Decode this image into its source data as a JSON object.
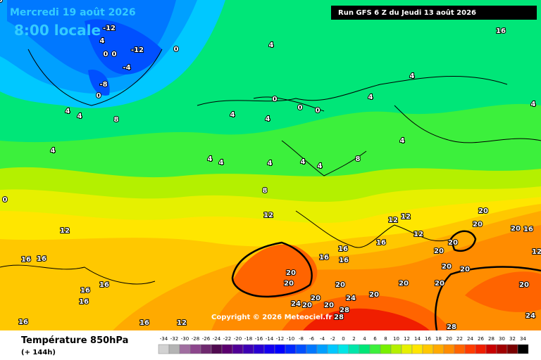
{
  "header": {
    "date": "Mercredi 19 août 2026",
    "time": "8:00 locale",
    "run": "Run GFS 6 Z du Jeudi 13 août 2026",
    "copyright": "Copyright © 2026 Meteociel.fr"
  },
  "footer": {
    "title": "Température 850hPa",
    "lead": "(+ 144h)"
  },
  "legend": [
    {
      "value": -34,
      "color": "#d2d2d2"
    },
    {
      "value": -32,
      "color": "#b4b4b4"
    },
    {
      "value": -30,
      "color": "#a06ea0"
    },
    {
      "value": -28,
      "color": "#8c468c"
    },
    {
      "value": -26,
      "color": "#6e286e"
    },
    {
      "value": -24,
      "color": "#500a50"
    },
    {
      "value": -22,
      "color": "#5a006e"
    },
    {
      "value": -20,
      "color": "#500096"
    },
    {
      "value": -18,
      "color": "#3c00b4"
    },
    {
      "value": -16,
      "color": "#2800d2"
    },
    {
      "value": -14,
      "color": "#1400f0"
    },
    {
      "value": -12,
      "color": "#0000ff"
    },
    {
      "value": -10,
      "color": "#0028ff"
    },
    {
      "value": -8,
      "color": "#0050ff"
    },
    {
      "value": -6,
      "color": "#0078ff"
    },
    {
      "value": -4,
      "color": "#00a0ff"
    },
    {
      "value": -2,
      "color": "#00c8ff"
    },
    {
      "value": 0,
      "color": "#00e6e6"
    },
    {
      "value": 2,
      "color": "#00e6aa"
    },
    {
      "value": 4,
      "color": "#00e678"
    },
    {
      "value": 6,
      "color": "#3cf03c"
    },
    {
      "value": 8,
      "color": "#78f000"
    },
    {
      "value": 10,
      "color": "#b4f000"
    },
    {
      "value": 12,
      "color": "#e6f000"
    },
    {
      "value": 14,
      "color": "#ffe600"
    },
    {
      "value": 16,
      "color": "#ffc800"
    },
    {
      "value": 18,
      "color": "#ffaa00"
    },
    {
      "value": 20,
      "color": "#ff8c00"
    },
    {
      "value": 22,
      "color": "#ff6400"
    },
    {
      "value": 24,
      "color": "#ff3c00"
    },
    {
      "value": 26,
      "color": "#f01e00"
    },
    {
      "value": 28,
      "color": "#c80000"
    },
    {
      "value": 30,
      "color": "#a00000"
    },
    {
      "value": 32,
      "color": "#780000"
    },
    {
      "value": 34,
      "color": "#000000"
    }
  ],
  "map_labels": [
    -12,
    -12,
    -8,
    -4,
    0,
    0,
    0,
    0,
    4,
    4,
    4,
    4,
    0,
    0,
    0,
    4,
    4,
    8,
    4,
    4,
    4,
    4,
    4,
    4,
    4,
    4,
    4,
    8,
    4,
    8,
    12,
    12,
    12,
    12,
    12,
    16,
    16,
    16,
    16,
    16,
    16,
    16,
    16,
    16,
    16,
    16,
    12,
    20,
    20,
    20,
    20,
    20,
    20,
    20,
    20,
    20,
    20,
    20,
    20,
    20,
    24,
    24,
    24,
    20,
    20,
    20,
    28,
    28,
    28,
    20,
    16,
    12,
    16,
    0,
    8
  ]
}
